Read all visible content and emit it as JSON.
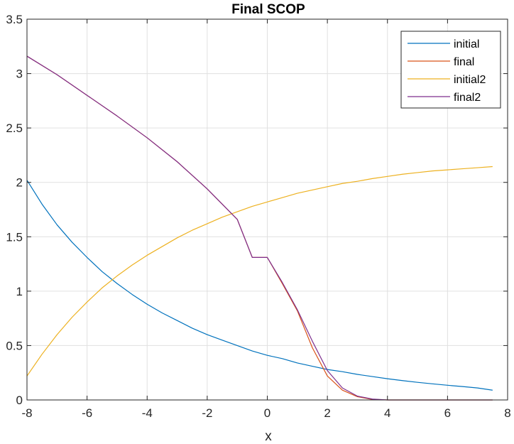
{
  "chart_data": {
    "type": "line",
    "title": "Final SCOP",
    "xlabel": "x",
    "ylabel": "",
    "xlim": [
      -8,
      8
    ],
    "ylim": [
      0,
      3.5
    ],
    "xticks": [
      -8,
      -6,
      -4,
      -2,
      0,
      2,
      4,
      6,
      8
    ],
    "yticks": [
      0,
      0.5,
      1,
      1.5,
      2,
      2.5,
      3,
      3.5
    ],
    "xtick_labels": [
      "-8",
      "-6",
      "-4",
      "-2",
      "0",
      "2",
      "4",
      "6",
      "8"
    ],
    "ytick_labels": [
      "0",
      "0.5",
      "1",
      "1.5",
      "2",
      "2.5",
      "3",
      "3.5"
    ],
    "grid": true,
    "legend_position": "top-right",
    "series": [
      {
        "name": "initial",
        "color": "#0072BD",
        "x": [
          -8,
          -7.5,
          -7,
          -6.5,
          -6,
          -5.5,
          -5,
          -4.5,
          -4,
          -3.5,
          -3,
          -2.5,
          -2,
          -1.5,
          -1,
          -0.5,
          0,
          0.5,
          1,
          1.5,
          2,
          2.5,
          3,
          3.5,
          4,
          4.5,
          5,
          5.5,
          6,
          6.5,
          7,
          7.5
        ],
        "y": [
          2.02,
          1.8,
          1.61,
          1.45,
          1.31,
          1.18,
          1.07,
          0.97,
          0.88,
          0.8,
          0.73,
          0.66,
          0.6,
          0.55,
          0.5,
          0.45,
          0.41,
          0.38,
          0.34,
          0.31,
          0.28,
          0.26,
          0.235,
          0.215,
          0.195,
          0.178,
          0.162,
          0.148,
          0.135,
          0.123,
          0.11,
          0.09
        ]
      },
      {
        "name": "final",
        "color": "#D95319",
        "x": [
          -8,
          -7,
          -6,
          -5,
          -4,
          -3,
          -2,
          -1,
          -0.5,
          0,
          0.5,
          1,
          1.5,
          2,
          2.5,
          3,
          3.5,
          4,
          5,
          6,
          7,
          7.5
        ],
        "y": [
          3.16,
          2.99,
          2.8,
          2.61,
          2.41,
          2.19,
          1.94,
          1.66,
          1.31,
          1.31,
          1.07,
          0.82,
          0.48,
          0.22,
          0.09,
          0.03,
          0.005,
          0.0,
          0.0,
          0.0,
          0.0,
          0.0
        ]
      },
      {
        "name": "initial2",
        "color": "#EDB120",
        "x": [
          -8,
          -7.5,
          -7,
          -6.5,
          -6,
          -5.5,
          -5,
          -4.5,
          -4,
          -3.5,
          -3,
          -2.5,
          -2,
          -1.5,
          -1,
          -0.5,
          0,
          0.5,
          1,
          1.5,
          2,
          2.5,
          3,
          3.5,
          4,
          4.5,
          5,
          5.5,
          6,
          6.5,
          7,
          7.5
        ],
        "y": [
          0.22,
          0.42,
          0.6,
          0.76,
          0.9,
          1.03,
          1.14,
          1.24,
          1.33,
          1.41,
          1.49,
          1.56,
          1.62,
          1.68,
          1.73,
          1.78,
          1.82,
          1.86,
          1.9,
          1.93,
          1.96,
          1.99,
          2.01,
          2.035,
          2.055,
          2.075,
          2.09,
          2.105,
          2.115,
          2.125,
          2.135,
          2.145
        ]
      },
      {
        "name": "final2",
        "color": "#7E2F8E",
        "x": [
          -8,
          -7,
          -6,
          -5,
          -4,
          -3,
          -2,
          -1,
          -0.5,
          0,
          0.5,
          1,
          1.5,
          2,
          2.5,
          3,
          3.5,
          4,
          5,
          6,
          7,
          7.5
        ],
        "y": [
          3.16,
          2.99,
          2.8,
          2.61,
          2.41,
          2.19,
          1.94,
          1.66,
          1.31,
          1.31,
          1.08,
          0.83,
          0.54,
          0.27,
          0.11,
          0.035,
          0.008,
          0.0,
          0.0,
          0.0,
          0.0,
          0.0
        ]
      }
    ]
  }
}
